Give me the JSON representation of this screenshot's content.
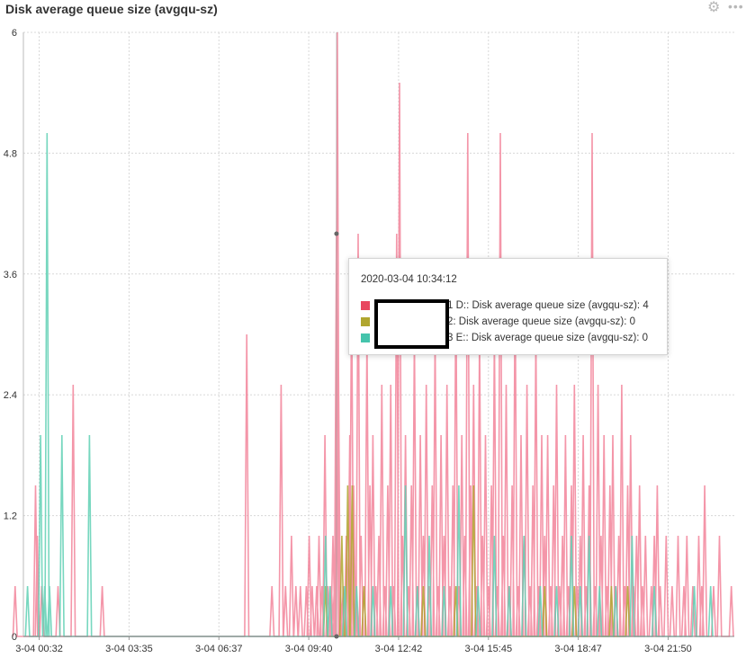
{
  "panel": {
    "title": "Disk average queue size (avgqu-sz)",
    "settings_icon": "gear-icon",
    "menu_icon": "more-icon"
  },
  "colors": {
    "series1": "#f2849a",
    "series2": "#b0a62f",
    "series3": "#5fd0b4",
    "swatch1": "#e8475f",
    "swatch2": "#b0a62f",
    "swatch3": "#45c4ac",
    "grid": "#d8d8d8"
  },
  "tooltip": {
    "time": "2020-03-04 10:34:12",
    "rows": [
      {
        "label": "1 D:: Disk average queue size (avgqu-sz): 4"
      },
      {
        "label": "2: Disk average queue size (avgqu-sz): 0"
      },
      {
        "label": "3 E:: Disk average queue size (avgqu-sz): 0"
      }
    ]
  },
  "chart_data": {
    "type": "line",
    "title": "Disk average queue size (avgqu-sz)",
    "xlabel": "",
    "ylabel": "",
    "ylim": [
      0,
      6
    ],
    "grid": true,
    "y_ticks": [
      "0",
      "1.2",
      "2.4",
      "3.6",
      "4.8",
      "6"
    ],
    "x_ticks": [
      "3-04 00:32",
      "3-04 03:35",
      "3-04 06:37",
      "3-04 09:40",
      "3-04 12:42",
      "3-04 15:45",
      "3-04 18:47",
      "3-04 21:50"
    ],
    "x_range_hours": [
      0,
      24
    ],
    "series": [
      {
        "name": "1 D:: Disk average queue size (avgqu-sz)",
        "color": "#f2849a",
        "spikes": [
          [
            -0.28,
            0.5
          ],
          [
            0.41,
            1.5
          ],
          [
            0.47,
            1.0
          ],
          [
            0.62,
            0.5
          ],
          [
            1.17,
            0.5
          ],
          [
            1.68,
            2.5
          ],
          [
            2.66,
            0.5
          ],
          [
            7.54,
            3.0
          ],
          [
            8.39,
            0.5
          ],
          [
            8.7,
            2.5
          ],
          [
            8.85,
            0.5
          ],
          [
            9.05,
            1.0
          ],
          [
            9.2,
            0.5
          ],
          [
            9.35,
            0.5
          ],
          [
            9.55,
            0.5
          ],
          [
            9.65,
            1.0
          ],
          [
            9.75,
            0.5
          ],
          [
            9.9,
            0.5
          ],
          [
            9.98,
            1.0
          ],
          [
            10.08,
            0.5
          ],
          [
            10.18,
            2.0
          ],
          [
            10.28,
            0.5
          ],
          [
            10.4,
            0.5
          ],
          [
            10.45,
            1.0
          ],
          [
            10.5,
            0.5
          ],
          [
            10.57,
            4.0
          ],
          [
            10.6,
            6.0
          ],
          [
            10.63,
            3.0
          ],
          [
            10.7,
            0.5
          ],
          [
            10.8,
            0.5
          ],
          [
            10.9,
            1.0
          ],
          [
            11.02,
            2.0
          ],
          [
            11.08,
            3.5
          ],
          [
            11.15,
            1.5
          ],
          [
            11.22,
            0.5
          ],
          [
            11.3,
            4.0
          ],
          [
            11.4,
            1.0
          ],
          [
            11.5,
            0.5
          ],
          [
            11.6,
            3.0
          ],
          [
            11.7,
            1.5
          ],
          [
            11.8,
            2.0
          ],
          [
            11.9,
            0.5
          ],
          [
            12.0,
            1.0
          ],
          [
            12.1,
            2.5
          ],
          [
            12.2,
            0.5
          ],
          [
            12.3,
            1.5
          ],
          [
            12.4,
            2.5
          ],
          [
            12.5,
            0.5
          ],
          [
            12.6,
            4.0
          ],
          [
            12.7,
            5.5
          ],
          [
            12.8,
            1.0
          ],
          [
            12.9,
            2.0
          ],
          [
            13.0,
            0.5
          ],
          [
            13.1,
            1.5
          ],
          [
            13.2,
            3.0
          ],
          [
            13.3,
            0.5
          ],
          [
            13.4,
            2.0
          ],
          [
            13.5,
            1.0
          ],
          [
            13.6,
            2.5
          ],
          [
            13.7,
            0.5
          ],
          [
            13.8,
            1.5
          ],
          [
            13.9,
            3.0
          ],
          [
            14.0,
            0.5
          ],
          [
            14.1,
            2.0
          ],
          [
            14.2,
            1.0
          ],
          [
            14.3,
            2.5
          ],
          [
            14.4,
            0.5
          ],
          [
            14.5,
            1.5
          ],
          [
            14.6,
            3.5
          ],
          [
            14.7,
            0.5
          ],
          [
            14.8,
            2.0
          ],
          [
            14.9,
            1.0
          ],
          [
            15.0,
            5.0
          ],
          [
            15.1,
            1.5
          ],
          [
            15.2,
            2.5
          ],
          [
            15.3,
            0.5
          ],
          [
            15.4,
            3.0
          ],
          [
            15.5,
            1.0
          ],
          [
            15.6,
            2.0
          ],
          [
            15.7,
            0.5
          ],
          [
            15.8,
            1.5
          ],
          [
            15.9,
            3.0
          ],
          [
            16.0,
            0.5
          ],
          [
            16.1,
            5.0
          ],
          [
            16.2,
            1.0
          ],
          [
            16.3,
            2.5
          ],
          [
            16.4,
            0.5
          ],
          [
            16.5,
            1.5
          ],
          [
            16.6,
            3.5
          ],
          [
            16.7,
            0.5
          ],
          [
            16.8,
            2.0
          ],
          [
            16.9,
            1.0
          ],
          [
            17.0,
            2.5
          ],
          [
            17.1,
            0.5
          ],
          [
            17.2,
            1.5
          ],
          [
            17.3,
            3.0
          ],
          [
            17.4,
            0.5
          ],
          [
            17.5,
            2.0
          ],
          [
            17.6,
            1.0
          ],
          [
            17.7,
            2.0
          ],
          [
            17.8,
            0.5
          ],
          [
            17.9,
            1.5
          ],
          [
            18.0,
            2.5
          ],
          [
            18.1,
            0.5
          ],
          [
            18.2,
            1.0
          ],
          [
            18.3,
            2.0
          ],
          [
            18.4,
            0.5
          ],
          [
            18.5,
            1.5
          ],
          [
            18.6,
            2.5
          ],
          [
            18.7,
            0.5
          ],
          [
            18.8,
            1.0
          ],
          [
            18.9,
            2.0
          ],
          [
            19.0,
            0.5
          ],
          [
            19.1,
            1.5
          ],
          [
            19.2,
            5.0
          ],
          [
            19.3,
            0.5
          ],
          [
            19.4,
            2.5
          ],
          [
            19.5,
            1.0
          ],
          [
            19.6,
            2.0
          ],
          [
            19.7,
            0.5
          ],
          [
            19.8,
            1.5
          ],
          [
            19.9,
            2.0
          ],
          [
            20.0,
            0.5
          ],
          [
            20.1,
            1.0
          ],
          [
            20.2,
            2.5
          ],
          [
            20.3,
            0.5
          ],
          [
            20.4,
            1.5
          ],
          [
            20.5,
            2.0
          ],
          [
            20.6,
            0.5
          ],
          [
            20.7,
            1.0
          ],
          [
            20.8,
            1.5
          ],
          [
            20.9,
            0.5
          ],
          [
            21.0,
            1.0
          ],
          [
            21.2,
            0.5
          ],
          [
            21.3,
            1.0
          ],
          [
            21.4,
            1.5
          ],
          [
            21.5,
            0.5
          ],
          [
            21.7,
            1.0
          ],
          [
            21.9,
            0.5
          ],
          [
            22.1,
            1.0
          ],
          [
            22.3,
            0.5
          ],
          [
            22.4,
            1.0
          ],
          [
            22.6,
            0.5
          ],
          [
            22.8,
            1.0
          ],
          [
            22.9,
            0.5
          ],
          [
            23.0,
            1.5
          ],
          [
            23.3,
            0.5
          ],
          [
            23.5,
            1.0
          ],
          [
            23.9,
            0.5
          ]
        ]
      },
      {
        "name": "2: Disk average queue size (avgqu-sz)",
        "color": "#b0a62f",
        "spikes": [
          [
            10.2,
            0.5
          ],
          [
            10.75,
            1.0
          ],
          [
            10.95,
            1.5
          ],
          [
            11.1,
            1.5
          ],
          [
            11.5,
            0.5
          ],
          [
            13.5,
            0.5
          ],
          [
            14.6,
            0.5
          ],
          [
            15.2,
            1.5
          ],
          [
            17.6,
            0.5
          ],
          [
            18.6,
            0.5
          ],
          [
            19.85,
            0.5
          ],
          [
            20.4,
            0.5
          ]
        ]
      },
      {
        "name": "3 E:: Disk average queue size (avgqu-sz)",
        "color": "#5fd0b4",
        "spikes": [
          [
            0.14,
            0.5
          ],
          [
            0.58,
            2.0
          ],
          [
            0.72,
            0.5
          ],
          [
            0.8,
            5.0
          ],
          [
            0.88,
            0.5
          ],
          [
            1.3,
            2.0
          ],
          [
            2.23,
            2.0
          ],
          [
            10.2,
            1.0
          ],
          [
            10.35,
            0.5
          ],
          [
            10.85,
            0.5
          ],
          [
            11.25,
            0.5
          ],
          [
            11.8,
            0.5
          ],
          [
            12.4,
            0.5
          ],
          [
            12.9,
            1.5
          ],
          [
            13.3,
            0.5
          ],
          [
            13.7,
            1.0
          ],
          [
            14.2,
            0.5
          ],
          [
            14.7,
            1.5
          ],
          [
            15.35,
            0.5
          ],
          [
            15.9,
            1.0
          ],
          [
            16.4,
            0.5
          ],
          [
            16.9,
            1.0
          ],
          [
            17.45,
            0.5
          ],
          [
            18.0,
            0.5
          ],
          [
            18.5,
            1.0
          ],
          [
            18.8,
            0.5
          ],
          [
            19.1,
            1.0
          ],
          [
            19.45,
            0.5
          ],
          [
            20.0,
            0.5
          ],
          [
            20.55,
            1.0
          ],
          [
            21.3,
            0.5
          ],
          [
            22.65,
            0.5
          ],
          [
            23.2,
            0.5
          ]
        ]
      }
    ],
    "hover": {
      "x": 10.57,
      "y": 4
    }
  }
}
